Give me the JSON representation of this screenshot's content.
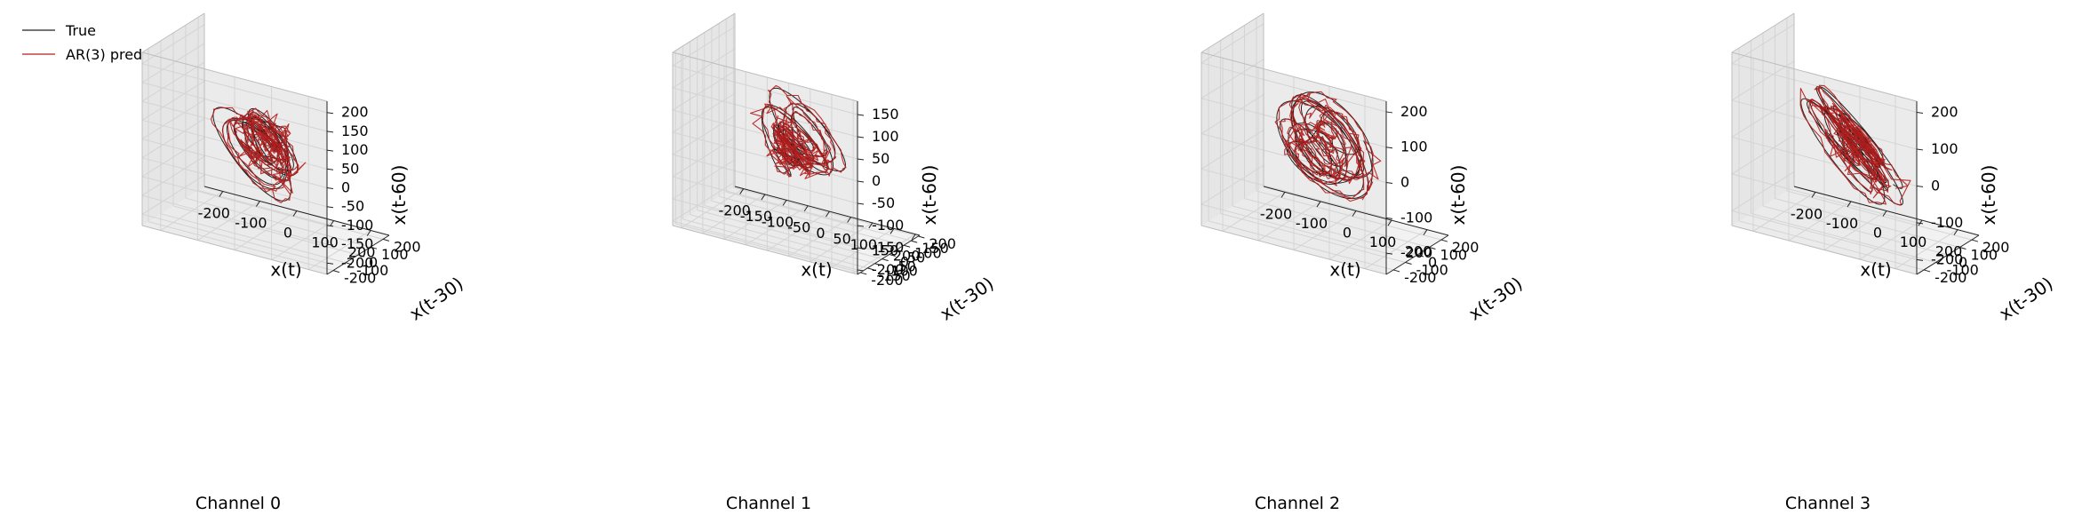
{
  "legend": [
    {
      "label": "True",
      "color": "#222222"
    },
    {
      "label": "AR(3) pred",
      "color": "#b71c1c"
    }
  ],
  "chart_data": [
    {
      "type": "line3d",
      "title": "Channel 0",
      "xlabel": "x(t)",
      "ylabel": "x(t-30)",
      "zlabel": "x(t-60)",
      "xlim": [
        -250,
        250
      ],
      "ylim": [
        -250,
        250
      ],
      "zlim": [
        -230,
        230
      ],
      "xticks": [
        -200,
        -100,
        0,
        100,
        200
      ],
      "yticks": [
        -200,
        -100,
        0,
        100,
        200
      ],
      "zticks": [
        -200,
        -150,
        -100,
        -50,
        0,
        50,
        100,
        150,
        200
      ],
      "grid": true,
      "seed": 11,
      "series": [
        {
          "name": "True",
          "color": "#222222"
        },
        {
          "name": "AR(3) pred",
          "color": "#b71c1c"
        }
      ]
    },
    {
      "type": "line3d",
      "title": "Channel 1",
      "xlabel": "x(t)",
      "ylabel": "x(t-30)",
      "zlabel": "x(t-60)",
      "xlim": [
        -220,
        210
      ],
      "ylim": [
        -220,
        210
      ],
      "zlim": [
        -210,
        180
      ],
      "xticks": [
        -200,
        -150,
        -100,
        -50,
        0,
        50,
        100,
        150,
        200
      ],
      "yticks": [
        -200,
        -150,
        -100,
        -50,
        0,
        50,
        100,
        150,
        200
      ],
      "zticks": [
        -200,
        -150,
        -100,
        -50,
        0,
        50,
        100,
        150
      ],
      "grid": true,
      "seed": 23,
      "series": [
        {
          "name": "True",
          "color": "#222222"
        },
        {
          "name": "AR(3) pred",
          "color": "#b71c1c"
        }
      ]
    },
    {
      "type": "line3d",
      "title": "Channel 2",
      "xlabel": "x(t)",
      "ylabel": "x(t-30)",
      "zlabel": "x(t-60)",
      "xlim": [
        -260,
        260
      ],
      "ylim": [
        -260,
        260
      ],
      "zlim": [
        -260,
        230
      ],
      "xticks": [
        -200,
        -100,
        0,
        100,
        200
      ],
      "yticks": [
        -200,
        -100,
        0,
        100,
        200
      ],
      "zticks": [
        -200,
        -100,
        0,
        100,
        200
      ],
      "grid": true,
      "seed": 37,
      "series": [
        {
          "name": "True",
          "color": "#222222"
        },
        {
          "name": "AR(3) pred",
          "color": "#b71c1c"
        }
      ]
    },
    {
      "type": "line3d",
      "title": "Channel 3",
      "xlabel": "x(t)",
      "ylabel": "x(t-30)",
      "zlabel": "x(t-60)",
      "xlim": [
        -260,
        260
      ],
      "ylim": [
        -260,
        260
      ],
      "zlim": [
        -240,
        230
      ],
      "xticks": [
        -200,
        -100,
        0,
        100,
        200
      ],
      "yticks": [
        -200,
        -100,
        0,
        100,
        200
      ],
      "zticks": [
        -200,
        -100,
        0,
        100,
        200
      ],
      "grid": true,
      "seed": 53,
      "series": [
        {
          "name": "True",
          "color": "#222222"
        },
        {
          "name": "AR(3) pred",
          "color": "#b71c1c"
        }
      ]
    }
  ]
}
